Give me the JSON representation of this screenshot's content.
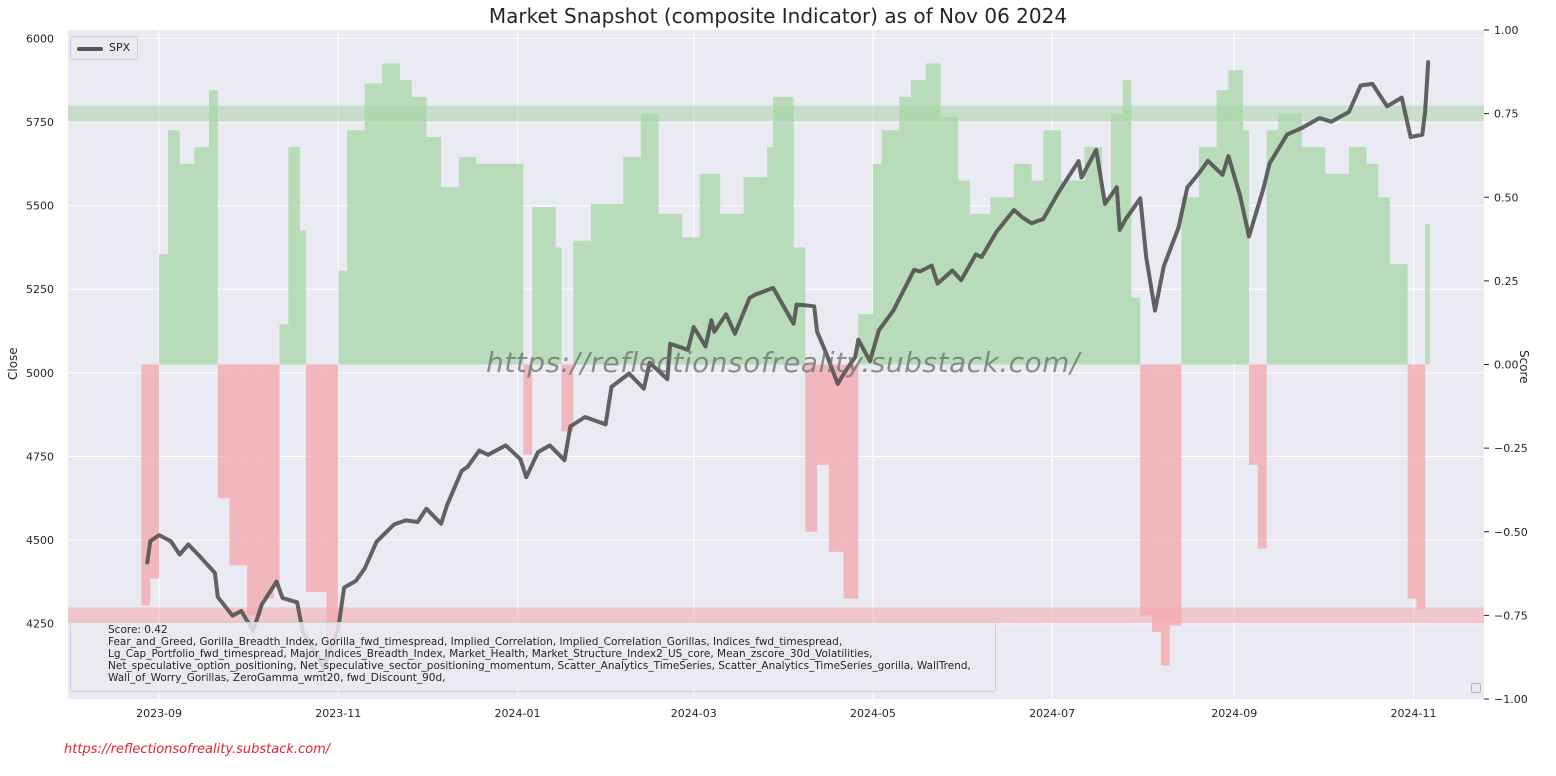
{
  "title": "Market Snapshot (composite Indicator) as of Nov 06 2024",
  "footer_link": "https://reflectionsofreality.substack.com/",
  "watermark": "https://reflectionsofreality.substack.com/",
  "legend": {
    "label": "SPX"
  },
  "info": {
    "score_line": "Score: 0.42",
    "lines": [
      "Fear_and_Greed, Gorilla_Breadth_Index, Gorilla_fwd_timespread, Implied_Correlation, Implied_Correlation_Gorillas, Indices_fwd_timespread,",
      "Lg_Cap_Portfolio_fwd_timespread, Major_Indices_Breadth_Index, Market_Health, Market_Structure_Index2_US_core, Mean_zscore_30d_Volatilities,",
      "Net_speculative_option_positioning, Net_speculative_sector_positioning_momentum, Scatter_Analytics_TimeSeries, Scatter_Analytics_TimeSeries_gorilla, WallTrend,",
      "Wall_of_Worry_Gorillas, ZeroGamma_wmt20, fwd_Discount_90d,"
    ]
  },
  "colors": {
    "plot_bg": "#eaeaf2",
    "grid": "#ffffff",
    "spx_line": "#555555",
    "positive_fill": "#a9d6a9",
    "negative_fill": "#f4a8ae",
    "band_top": "#a9d6a9",
    "band_bottom": "#f4a8ae"
  },
  "chart_data": {
    "type": "line",
    "title": "Market Snapshot (composite Indicator) as of Nov 06 2024",
    "ylabel": "Close",
    "ylabel_right": "Score",
    "xlim": [
      "2023-08-01",
      "2024-11-25"
    ],
    "ylim": [
      4025,
      6025
    ],
    "ylim_right": [
      -1.0,
      1.0
    ],
    "x_ticks": [
      "2023-09",
      "2023-11",
      "2024-01",
      "2024-03",
      "2024-05",
      "2024-07",
      "2024-09",
      "2024-11"
    ],
    "y_ticks": [
      "4250",
      "4500",
      "4750",
      "5000",
      "5250",
      "5500",
      "5750",
      "6000"
    ],
    "y_right_ticks": [
      "−1.00",
      "−0.75",
      "−0.50",
      "−0.25",
      "0.00",
      "0.25",
      "0.50",
      "0.75",
      "1.00"
    ],
    "legend_position": "top-left",
    "grid": true,
    "horizontal_bands": [
      0.75,
      -0.75
    ],
    "series": [
      {
        "name": "SPX",
        "axis": "left",
        "points": [
          [
            "2023-08-28",
            4433
          ],
          [
            "2023-08-29",
            4497
          ],
          [
            "2023-09-01",
            4515
          ],
          [
            "2023-09-05",
            4497
          ],
          [
            "2023-09-08",
            4457
          ],
          [
            "2023-09-11",
            4487
          ],
          [
            "2023-09-15",
            4450
          ],
          [
            "2023-09-20",
            4402
          ],
          [
            "2023-09-21",
            4330
          ],
          [
            "2023-09-26",
            4274
          ],
          [
            "2023-09-29",
            4288
          ],
          [
            "2023-10-03",
            4229
          ],
          [
            "2023-10-06",
            4308
          ],
          [
            "2023-10-11",
            4376
          ],
          [
            "2023-10-13",
            4327
          ],
          [
            "2023-10-18",
            4314
          ],
          [
            "2023-10-20",
            4224
          ],
          [
            "2023-10-26",
            4137
          ],
          [
            "2023-10-27",
            4117
          ],
          [
            "2023-11-01",
            4237
          ],
          [
            "2023-11-03",
            4358
          ],
          [
            "2023-11-07",
            4378
          ],
          [
            "2023-11-10",
            4415
          ],
          [
            "2023-11-14",
            4495
          ],
          [
            "2023-11-20",
            4547
          ],
          [
            "2023-11-24",
            4559
          ],
          [
            "2023-11-28",
            4554
          ],
          [
            "2023-12-01",
            4594
          ],
          [
            "2023-12-06",
            4549
          ],
          [
            "2023-12-08",
            4604
          ],
          [
            "2023-12-13",
            4707
          ],
          [
            "2023-12-15",
            4719
          ],
          [
            "2023-12-19",
            4768
          ],
          [
            "2023-12-22",
            4755
          ],
          [
            "2023-12-28",
            4783
          ],
          [
            "2024-01-02",
            4742
          ],
          [
            "2024-01-04",
            4688
          ],
          [
            "2024-01-08",
            4763
          ],
          [
            "2024-01-12",
            4783
          ],
          [
            "2024-01-17",
            4739
          ],
          [
            "2024-01-19",
            4840
          ],
          [
            "2024-01-24",
            4868
          ],
          [
            "2024-01-31",
            4846
          ],
          [
            "2024-02-02",
            4958
          ],
          [
            "2024-02-08",
            4998
          ],
          [
            "2024-02-13",
            4953
          ],
          [
            "2024-02-15",
            5030
          ],
          [
            "2024-02-21",
            4981
          ],
          [
            "2024-02-22",
            5087
          ],
          [
            "2024-02-28",
            5069
          ],
          [
            "2024-03-01",
            5137
          ],
          [
            "2024-03-05",
            5079
          ],
          [
            "2024-03-07",
            5157
          ],
          [
            "2024-03-08",
            5123
          ],
          [
            "2024-03-12",
            5175
          ],
          [
            "2024-03-15",
            5117
          ],
          [
            "2024-03-20",
            5224
          ],
          [
            "2024-03-22",
            5234
          ],
          [
            "2024-03-28",
            5254
          ],
          [
            "2024-04-04",
            5147
          ],
          [
            "2024-04-05",
            5204
          ],
          [
            "2024-04-08",
            5202
          ],
          [
            "2024-04-11",
            5199
          ],
          [
            "2024-04-12",
            5123
          ],
          [
            "2024-04-15",
            5061
          ],
          [
            "2024-04-19",
            4967
          ],
          [
            "2024-04-22",
            5010
          ],
          [
            "2024-04-25",
            5048
          ],
          [
            "2024-04-26",
            5099
          ],
          [
            "2024-04-30",
            5035
          ],
          [
            "2024-05-03",
            5127
          ],
          [
            "2024-05-08",
            5187
          ],
          [
            "2024-05-10",
            5222
          ],
          [
            "2024-05-15",
            5308
          ],
          [
            "2024-05-17",
            5303
          ],
          [
            "2024-05-21",
            5321
          ],
          [
            "2024-05-23",
            5267
          ],
          [
            "2024-05-28",
            5306
          ],
          [
            "2024-05-31",
            5277
          ],
          [
            "2024-06-05",
            5354
          ],
          [
            "2024-06-07",
            5346
          ],
          [
            "2024-06-12",
            5421
          ],
          [
            "2024-06-18",
            5487
          ],
          [
            "2024-06-21",
            5464
          ],
          [
            "2024-06-24",
            5447
          ],
          [
            "2024-06-28",
            5460
          ],
          [
            "2024-07-03",
            5537
          ],
          [
            "2024-07-10",
            5633
          ],
          [
            "2024-07-11",
            5584
          ],
          [
            "2024-07-16",
            5667
          ],
          [
            "2024-07-19",
            5505
          ],
          [
            "2024-07-23",
            5555
          ],
          [
            "2024-07-24",
            5427
          ],
          [
            "2024-07-26",
            5459
          ],
          [
            "2024-07-31",
            5522
          ],
          [
            "2024-08-02",
            5346
          ],
          [
            "2024-08-05",
            5186
          ],
          [
            "2024-08-08",
            5319
          ],
          [
            "2024-08-13",
            5434
          ],
          [
            "2024-08-16",
            5554
          ],
          [
            "2024-08-20",
            5597
          ],
          [
            "2024-08-23",
            5634
          ],
          [
            "2024-08-28",
            5592
          ],
          [
            "2024-08-30",
            5648
          ],
          [
            "2024-09-03",
            5528
          ],
          [
            "2024-09-06",
            5408
          ],
          [
            "2024-09-11",
            5554
          ],
          [
            "2024-09-13",
            5626
          ],
          [
            "2024-09-19",
            5713
          ],
          [
            "2024-09-24",
            5732
          ],
          [
            "2024-09-30",
            5762
          ],
          [
            "2024-10-04",
            5751
          ],
          [
            "2024-10-10",
            5780
          ],
          [
            "2024-10-14",
            5859
          ],
          [
            "2024-10-18",
            5864
          ],
          [
            "2024-10-23",
            5797
          ],
          [
            "2024-10-28",
            5823
          ],
          [
            "2024-10-31",
            5705
          ],
          [
            "2024-11-04",
            5712
          ],
          [
            "2024-11-05",
            5783
          ],
          [
            "2024-11-06",
            5929
          ]
        ]
      },
      {
        "name": "Score",
        "axis": "right",
        "type": "area",
        "points": [
          [
            "2023-08-25",
            0.0
          ],
          [
            "2023-08-26",
            -0.72
          ],
          [
            "2023-08-29",
            -0.64
          ],
          [
            "2023-09-01",
            0.33
          ],
          [
            "2023-09-04",
            0.7
          ],
          [
            "2023-09-08",
            0.6
          ],
          [
            "2023-09-13",
            0.65
          ],
          [
            "2023-09-18",
            0.82
          ],
          [
            "2023-09-21",
            -0.4
          ],
          [
            "2023-09-25",
            -0.6
          ],
          [
            "2023-10-01",
            -0.75
          ],
          [
            "2023-10-06",
            -0.7
          ],
          [
            "2023-10-10",
            -0.66
          ],
          [
            "2023-10-12",
            0.12
          ],
          [
            "2023-10-15",
            0.65
          ],
          [
            "2023-10-19",
            0.4
          ],
          [
            "2023-10-21",
            -0.68
          ],
          [
            "2023-10-28",
            -0.85
          ],
          [
            "2023-11-01",
            0.28
          ],
          [
            "2023-11-04",
            0.7
          ],
          [
            "2023-11-10",
            0.84
          ],
          [
            "2023-11-16",
            0.9
          ],
          [
            "2023-11-22",
            0.85
          ],
          [
            "2023-11-26",
            0.8
          ],
          [
            "2023-12-01",
            0.68
          ],
          [
            "2023-12-06",
            0.53
          ],
          [
            "2023-12-12",
            0.62
          ],
          [
            "2023-12-18",
            0.6
          ],
          [
            "2024-01-01",
            0.6
          ],
          [
            "2024-01-03",
            -0.27
          ],
          [
            "2024-01-06",
            0.47
          ],
          [
            "2024-01-14",
            0.35
          ],
          [
            "2024-01-16",
            -0.2
          ],
          [
            "2024-01-20",
            0.37
          ],
          [
            "2024-01-26",
            0.48
          ],
          [
            "2024-02-06",
            0.62
          ],
          [
            "2024-02-12",
            0.75
          ],
          [
            "2024-02-18",
            0.45
          ],
          [
            "2024-02-26",
            0.38
          ],
          [
            "2024-03-03",
            0.57
          ],
          [
            "2024-03-10",
            0.45
          ],
          [
            "2024-03-18",
            0.56
          ],
          [
            "2024-03-26",
            0.65
          ],
          [
            "2024-03-28",
            0.8
          ],
          [
            "2024-04-04",
            0.35
          ],
          [
            "2024-04-08",
            -0.5
          ],
          [
            "2024-04-12",
            -0.3
          ],
          [
            "2024-04-16",
            -0.56
          ],
          [
            "2024-04-21",
            -0.7
          ],
          [
            "2024-04-26",
            0.15
          ],
          [
            "2024-05-01",
            0.6
          ],
          [
            "2024-05-04",
            0.7
          ],
          [
            "2024-05-10",
            0.8
          ],
          [
            "2024-05-14",
            0.85
          ],
          [
            "2024-05-19",
            0.9
          ],
          [
            "2024-05-24",
            0.74
          ],
          [
            "2024-05-30",
            0.55
          ],
          [
            "2024-06-03",
            0.45
          ],
          [
            "2024-06-10",
            0.5
          ],
          [
            "2024-06-18",
            0.6
          ],
          [
            "2024-06-24",
            0.55
          ],
          [
            "2024-06-28",
            0.7
          ],
          [
            "2024-07-04",
            0.55
          ],
          [
            "2024-07-12",
            0.65
          ],
          [
            "2024-07-18",
            0.5
          ],
          [
            "2024-07-21",
            0.75
          ],
          [
            "2024-07-25",
            0.85
          ],
          [
            "2024-07-28",
            0.2
          ],
          [
            "2024-07-31",
            -0.75
          ],
          [
            "2024-08-04",
            -0.8
          ],
          [
            "2024-08-07",
            -0.9
          ],
          [
            "2024-08-10",
            -0.78
          ],
          [
            "2024-08-14",
            0.5
          ],
          [
            "2024-08-20",
            0.65
          ],
          [
            "2024-08-26",
            0.82
          ],
          [
            "2024-08-30",
            0.88
          ],
          [
            "2024-09-04",
            0.7
          ],
          [
            "2024-09-06",
            -0.3
          ],
          [
            "2024-09-09",
            -0.55
          ],
          [
            "2024-09-12",
            0.7
          ],
          [
            "2024-09-16",
            0.75
          ],
          [
            "2024-09-24",
            0.65
          ],
          [
            "2024-10-02",
            0.57
          ],
          [
            "2024-10-10",
            0.65
          ],
          [
            "2024-10-16",
            0.6
          ],
          [
            "2024-10-20",
            0.5
          ],
          [
            "2024-10-24",
            0.3
          ],
          [
            "2024-10-30",
            -0.7
          ],
          [
            "2024-11-02",
            -0.73
          ],
          [
            "2024-11-05",
            0.42
          ],
          [
            "2024-11-06",
            0.42
          ]
        ]
      }
    ]
  }
}
